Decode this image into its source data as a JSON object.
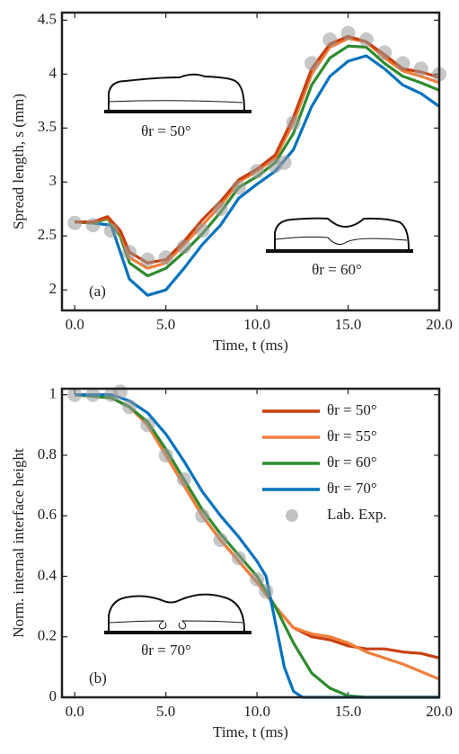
{
  "chart_data": [
    {
      "type": "line",
      "ylabel": "Spread length, s (mm)",
      "xlabel": "Time, t (ms)",
      "annotations": [
        "(a)",
        "θr = 50°",
        "θr = 60°"
      ],
      "xlim": [
        -0.7,
        20.0
      ],
      "ylim": [
        1.81,
        4.57
      ],
      "xticks": [
        {
          "value": 0,
          "label": "0.0"
        },
        {
          "value": 5,
          "label": "5.0"
        },
        {
          "value": 10,
          "label": "10.0"
        },
        {
          "value": 15,
          "label": "15.0"
        },
        {
          "value": 20,
          "label": "20.0"
        }
      ],
      "yticks": [
        2,
        2.5,
        3,
        3.5,
        4,
        4.5
      ],
      "series": [
        {
          "type": "scatter",
          "color": "#999999",
          "x": [
            0,
            1,
            2,
            3,
            4,
            5,
            6,
            7,
            8,
            9,
            10,
            11,
            11.5,
            12,
            13,
            14,
            15,
            16,
            17,
            18,
            19,
            20
          ],
          "values": [
            2.62,
            2.6,
            2.55,
            2.35,
            2.28,
            2.3,
            2.4,
            2.55,
            2.75,
            2.95,
            3.1,
            3.15,
            3.18,
            3.55,
            4.1,
            4.32,
            4.38,
            4.32,
            4.2,
            4.1,
            4.05,
            4.0
          ]
        },
        {
          "color": "#0072bd",
          "x": [
            0,
            1,
            2,
            3,
            4,
            5,
            6,
            7,
            8,
            9,
            10,
            11,
            12,
            13,
            14,
            15,
            16,
            17,
            18,
            19,
            20
          ],
          "values": [
            2.63,
            2.62,
            2.6,
            2.1,
            1.95,
            2.0,
            2.2,
            2.42,
            2.6,
            2.85,
            2.98,
            3.1,
            3.3,
            3.7,
            3.98,
            4.12,
            4.17,
            4.05,
            3.9,
            3.82,
            3.7
          ]
        },
        {
          "color": "#2e8b2e",
          "x": [
            0,
            1,
            1.8,
            2.5,
            3,
            4,
            5,
            6,
            7,
            8,
            9,
            10,
            11,
            12,
            13,
            14,
            15,
            16,
            17,
            18,
            19,
            20
          ],
          "values": [
            2.63,
            2.62,
            2.66,
            2.5,
            2.25,
            2.13,
            2.2,
            2.35,
            2.52,
            2.72,
            2.95,
            3.05,
            3.18,
            3.45,
            3.9,
            4.15,
            4.26,
            4.25,
            4.1,
            3.98,
            3.92,
            3.85
          ]
        },
        {
          "color": "#f07f3c",
          "x": [
            0,
            1,
            1.8,
            2.5,
            3,
            4,
            5,
            6,
            7,
            8,
            9,
            10,
            11,
            12,
            13,
            14,
            15,
            16,
            17,
            18,
            19,
            20
          ],
          "values": [
            2.63,
            2.63,
            2.67,
            2.53,
            2.3,
            2.2,
            2.25,
            2.42,
            2.6,
            2.78,
            3.0,
            3.1,
            3.22,
            3.55,
            4.0,
            4.25,
            4.33,
            4.3,
            4.15,
            4.03,
            3.98,
            3.92
          ]
        },
        {
          "color": "#c9400f",
          "x": [
            0,
            1,
            1.8,
            2.5,
            3,
            4,
            5,
            6,
            7,
            8,
            9,
            10,
            11,
            12,
            13,
            14,
            15,
            16,
            17,
            18,
            19,
            20
          ],
          "values": [
            2.63,
            2.63,
            2.68,
            2.55,
            2.35,
            2.25,
            2.28,
            2.45,
            2.65,
            2.82,
            3.02,
            3.12,
            3.25,
            3.6,
            4.05,
            4.28,
            4.35,
            4.3,
            4.18,
            4.05,
            4.02,
            3.97
          ]
        }
      ]
    },
    {
      "type": "line",
      "ylabel": "Norm. internal interface height",
      "xlabel": "Time, t (ms)",
      "annotations": [
        "(b)",
        "θr = 70°"
      ],
      "legend": "upper right",
      "xlim": [
        -0.7,
        20.0
      ],
      "ylim": [
        0,
        1.02
      ],
      "xticks": [
        {
          "value": 0,
          "label": "0.0"
        },
        {
          "value": 5,
          "label": "5.0"
        },
        {
          "value": 10,
          "label": "10.0"
        },
        {
          "value": 15,
          "label": "15.0"
        },
        {
          "value": 20,
          "label": "20.0"
        }
      ],
      "yticks": [
        0,
        0.2,
        0.4,
        0.6,
        0.8,
        1
      ],
      "series": [
        {
          "name": "θr = 50°",
          "color": "#c9400f",
          "x": [
            0,
            2,
            3,
            4,
            5,
            6,
            7,
            8,
            9,
            10,
            11,
            12,
            13,
            14,
            15,
            16,
            17,
            18,
            19,
            20
          ],
          "values": [
            1,
            0.99,
            0.96,
            0.9,
            0.8,
            0.7,
            0.6,
            0.52,
            0.45,
            0.38,
            0.3,
            0.23,
            0.2,
            0.19,
            0.17,
            0.16,
            0.16,
            0.15,
            0.145,
            0.13
          ]
        },
        {
          "name": "θr = 55°",
          "color": "#f07f3c",
          "x": [
            0,
            2,
            3,
            4,
            5,
            6,
            7,
            8,
            9,
            10,
            11,
            12,
            13,
            14,
            15,
            16,
            17,
            18,
            19,
            20
          ],
          "values": [
            1,
            0.99,
            0.96,
            0.9,
            0.8,
            0.7,
            0.6,
            0.52,
            0.45,
            0.38,
            0.3,
            0.23,
            0.21,
            0.2,
            0.18,
            0.15,
            0.13,
            0.11,
            0.085,
            0.06
          ]
        },
        {
          "name": "θr = 60°",
          "color": "#2e8b2e",
          "x": [
            0,
            2,
            3,
            4,
            5,
            6,
            7,
            8,
            9,
            10,
            11,
            12,
            13,
            14,
            15,
            16,
            20
          ],
          "values": [
            1,
            0.99,
            0.96,
            0.91,
            0.82,
            0.72,
            0.62,
            0.54,
            0.47,
            0.4,
            0.3,
            0.18,
            0.08,
            0.03,
            0.005,
            0,
            0
          ]
        },
        {
          "name": "θr = 70°",
          "color": "#0072bd",
          "x": [
            0,
            2,
            3,
            4,
            5,
            6,
            7,
            8,
            9,
            10,
            10.5,
            11,
            11.5,
            12,
            12.5,
            20
          ],
          "values": [
            1,
            1,
            0.98,
            0.94,
            0.87,
            0.78,
            0.68,
            0.6,
            0.53,
            0.45,
            0.4,
            0.25,
            0.1,
            0.02,
            0,
            0
          ]
        },
        {
          "name": "Lab. Exp.",
          "type": "scatter",
          "color": "#999999",
          "x": [
            0,
            1,
            2,
            2.5,
            3,
            4,
            5,
            6,
            7,
            8,
            9,
            10,
            10.5
          ],
          "values": [
            1,
            1,
            1,
            1.01,
            0.96,
            0.9,
            0.8,
            0.72,
            0.6,
            0.52,
            0.46,
            0.39,
            0.35
          ]
        }
      ]
    }
  ]
}
